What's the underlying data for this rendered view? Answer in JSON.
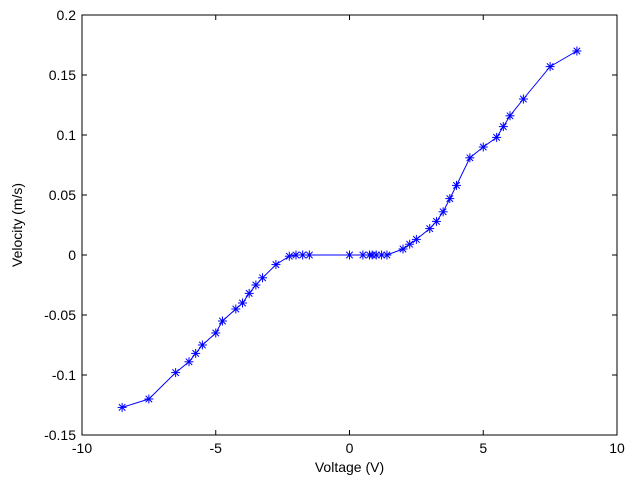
{
  "chart_data": {
    "type": "line",
    "title": "",
    "xlabel": "Voltage (V)",
    "ylabel": "Velocity (m/s)",
    "xlim": [
      -10,
      10
    ],
    "ylim": [
      -0.15,
      0.2
    ],
    "xticks": [
      -10,
      -5,
      0,
      5,
      10
    ],
    "xtick_labels": [
      "-10",
      "-5",
      "0",
      "5",
      "10"
    ],
    "yticks": [
      -0.15,
      -0.1,
      -0.05,
      0,
      0.05,
      0.1,
      0.15,
      0.2
    ],
    "ytick_labels": [
      "-0.15",
      "-0.1",
      "-0.05",
      "0",
      "0.05",
      "0.1",
      "0.15",
      "0.2"
    ],
    "grid": false,
    "marker": "asterisk",
    "series": [
      {
        "color": "#0000ff",
        "x": [
          -8.5,
          -7.5,
          -6.5,
          -6.0,
          -5.75,
          -5.5,
          -5.0,
          -4.75,
          -4.25,
          -4.0,
          -3.75,
          -3.5,
          -3.25,
          -2.75,
          -2.25,
          -2.0,
          -1.75,
          -1.5,
          0.0,
          0.5,
          0.75,
          0.85,
          1.0,
          1.2,
          1.4,
          2.0,
          2.25,
          2.5,
          3.0,
          3.25,
          3.5,
          3.75,
          4.0,
          4.5,
          5.0,
          5.5,
          5.75,
          6.0,
          6.5,
          7.5,
          8.5
        ],
        "y": [
          -0.127,
          -0.12,
          -0.098,
          -0.089,
          -0.082,
          -0.075,
          -0.065,
          -0.055,
          -0.045,
          -0.04,
          -0.032,
          -0.025,
          -0.019,
          -0.008,
          -0.001,
          0.0,
          0.0,
          0.0,
          0.0,
          0.0,
          0.0,
          0.0,
          0.0,
          0.0,
          0.0,
          0.005,
          0.009,
          0.013,
          0.022,
          0.028,
          0.036,
          0.047,
          0.058,
          0.081,
          0.09,
          0.098,
          0.107,
          0.116,
          0.13,
          0.157,
          0.17
        ]
      }
    ]
  }
}
